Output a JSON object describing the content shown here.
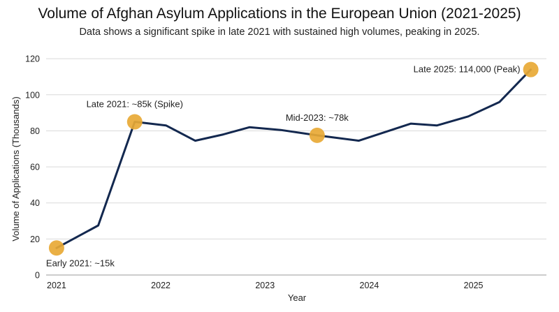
{
  "chart_data": {
    "type": "line",
    "title": "Volume of Afghan Asylum Applications in the European Union (2021-2025)",
    "subtitle": "Data shows a significant spike in late 2021 with sustained high volumes, peaking in 2025.",
    "xlabel": "Year",
    "ylabel": "Volume of Applications (Thousands)",
    "xlim": [
      2020.9,
      2025.7
    ],
    "ylim": [
      0,
      122
    ],
    "x_ticks": [
      2021,
      2022,
      2023,
      2024,
      2025
    ],
    "y_ticks": [
      0,
      20,
      40,
      60,
      80,
      100,
      120
    ],
    "grid": "horizontal",
    "line_color": "#13284f",
    "highlight_color": "#e8a935",
    "series": [
      {
        "x": [
          2021.0,
          2021.4,
          2021.75,
          2022.05,
          2022.33,
          2022.6,
          2022.85,
          2023.15,
          2023.5,
          2023.9,
          2024.4,
          2024.65,
          2024.95,
          2025.25,
          2025.55
        ],
        "values": [
          15,
          27.5,
          85,
          83,
          74.5,
          78,
          82,
          80.5,
          77.5,
          74.5,
          84,
          83,
          88,
          96,
          114
        ]
      }
    ],
    "annotations": [
      {
        "x": 2021.0,
        "y": 15,
        "text": "Early 2021: ~15k",
        "position": "below"
      },
      {
        "x": 2021.75,
        "y": 85,
        "text": "Late 2021: ~85k (Spike)",
        "position": "above"
      },
      {
        "x": 2023.5,
        "y": 77.5,
        "text": "Mid-2023: ~78k",
        "position": "above"
      },
      {
        "x": 2025.55,
        "y": 114,
        "text": "Late 2025: 114,000 (Peak)",
        "position": "left"
      }
    ]
  }
}
